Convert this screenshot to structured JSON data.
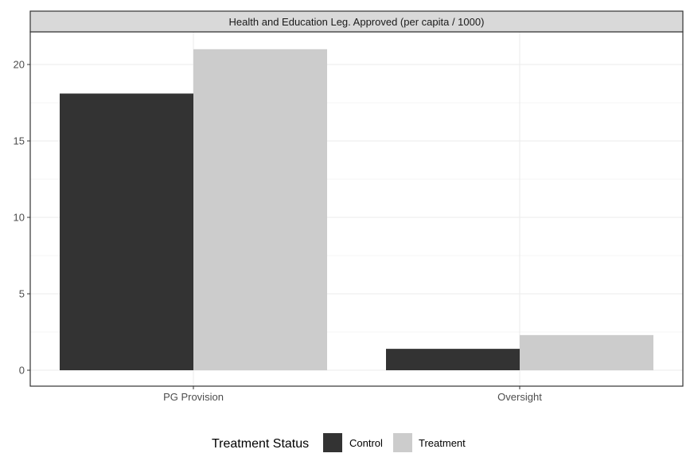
{
  "chart_data": {
    "type": "bar",
    "title": "Health and Education Leg. Approved (per capita / 1000)",
    "xlabel": "",
    "ylabel": "",
    "categories": [
      "PG Provision",
      "Oversight"
    ],
    "series": [
      {
        "name": "Control",
        "values": [
          18.1,
          1.4
        ],
        "color": "#333333"
      },
      {
        "name": "Treatment",
        "values": [
          21.0,
          2.3
        ],
        "color": "#cccccc"
      }
    ],
    "ylim": [
      0,
      22.5
    ],
    "yticks": [
      0,
      5,
      10,
      15,
      20
    ],
    "grid": true,
    "legend": {
      "title": "Treatment Status",
      "position": "bottom"
    }
  }
}
